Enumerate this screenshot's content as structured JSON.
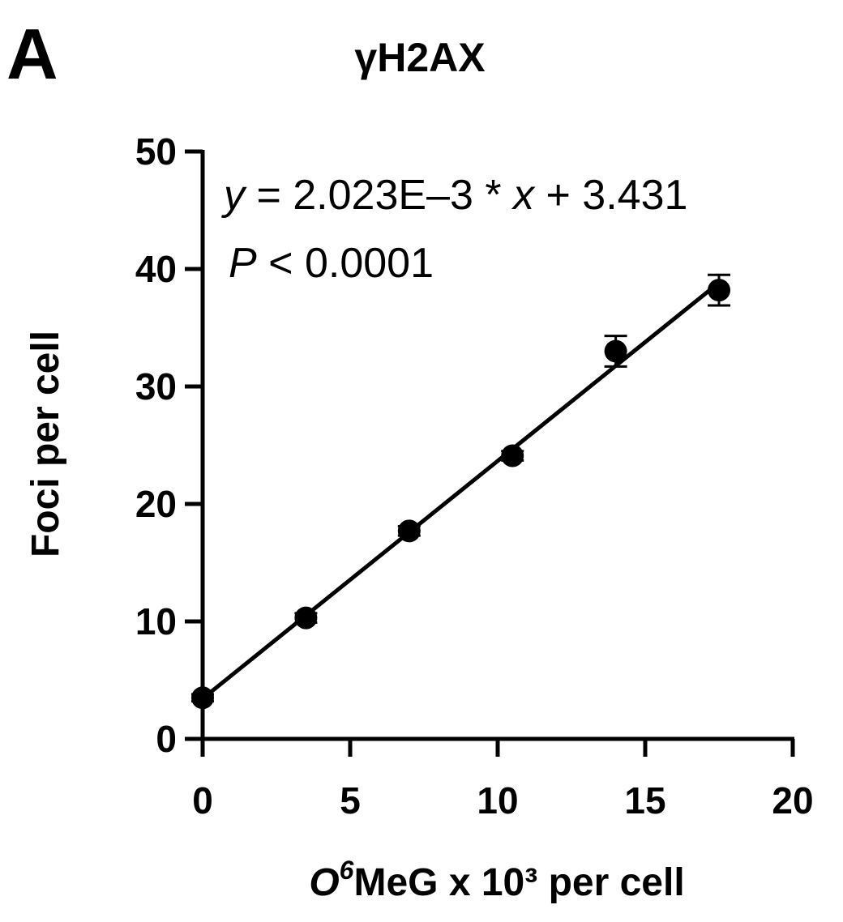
{
  "panel_label": "A",
  "chart_data": {
    "type": "scatter",
    "title": "γH2AX",
    "xlabel_parts": {
      "o": "O",
      "sup6": "6",
      "rest": "MeG x 10³ per cell"
    },
    "ylabel": "Foci per cell",
    "xlim": [
      0,
      20
    ],
    "ylim": [
      0,
      50
    ],
    "x_ticks": [
      0,
      5,
      10,
      15,
      20
    ],
    "y_ticks": [
      0,
      10,
      20,
      30,
      40,
      50
    ],
    "x_tick_labels": [
      "0",
      "5",
      "10",
      "15",
      "20"
    ],
    "y_tick_labels": [
      "0",
      "10",
      "20",
      "30",
      "40",
      "50"
    ],
    "series": [
      {
        "points": [
          {
            "x": 0,
            "y": 3.5,
            "err": 0.3
          },
          {
            "x": 3.5,
            "y": 10.3,
            "err": 0.4
          },
          {
            "x": 7.0,
            "y": 17.7,
            "err": 0.4
          },
          {
            "x": 10.5,
            "y": 24.1,
            "err": 0.4
          },
          {
            "x": 14.0,
            "y": 33.0,
            "err": 1.3
          },
          {
            "x": 17.5,
            "y": 38.2,
            "err": 1.3
          }
        ]
      }
    ],
    "fit": {
      "slope": 2.023,
      "intercept": 3.431,
      "x_range": [
        0,
        17.5
      ]
    },
    "annotation": {
      "equation": {
        "y": "y",
        "mid": " = 2.023E–3 * ",
        "x": "x",
        "end": " + 3.431"
      },
      "pvalue": {
        "p": "P",
        "rest": " < 0.0001"
      }
    }
  }
}
